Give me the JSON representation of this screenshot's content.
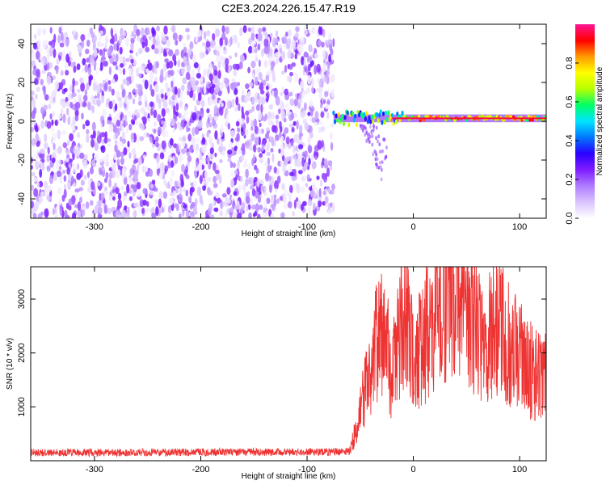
{
  "title": "C2E3.2024.226.15.47.R19",
  "chart_data": [
    {
      "type": "heatmap",
      "xlabel": "Height of straight line (km)",
      "ylabel": "Frequency (Hz)",
      "xlim": [
        -360,
        125
      ],
      "ylim": [
        -50,
        50
      ],
      "xticks": [
        -300,
        -200,
        -100,
        0,
        100
      ],
      "yticks": [
        -40,
        -20,
        0,
        20,
        40
      ],
      "colorbar": {
        "label": "Normalized spectral amplitude",
        "range": [
          0,
          1
        ],
        "ticks": [
          "0.0",
          "0.2",
          "0.4",
          "0.6",
          "0.8"
        ],
        "colors": [
          "#ffffff",
          "#d9c4ff",
          "#b07cff",
          "#7f1cff",
          "#2a00ff",
          "#0077ff",
          "#00e5ff",
          "#00ff66",
          "#b6ff00",
          "#ffff00",
          "#ff9900",
          "#ff0000",
          "#ff1493"
        ]
      },
      "regions": [
        {
          "name": "noise",
          "x_range": [
            -360,
            -75
          ],
          "freq_range": [
            -50,
            48
          ],
          "amplitude": 0.15
        },
        {
          "name": "signal-line",
          "x_range": [
            -75,
            125
          ],
          "frequency": 1.5,
          "peak_amplitude": 0.95
        },
        {
          "name": "scatter-tail",
          "x_range": [
            -50,
            -25
          ],
          "freq_range": [
            -35,
            0
          ],
          "amplitude": 0.15
        }
      ]
    },
    {
      "type": "line",
      "xlabel": "Height of straight line (km)",
      "ylabel": "SNR (10 * v/v)",
      "xlim": [
        -360,
        125
      ],
      "ylim": [
        0,
        3600
      ],
      "xticks": [
        -300,
        -200,
        -100,
        0,
        100
      ],
      "yticks": [
        1000,
        2000,
        3000
      ],
      "series": [
        {
          "name": "SNR",
          "color": "#ee3333",
          "x": [
            -360,
            -300,
            -200,
            -100,
            -60,
            -55,
            -50,
            -45,
            -40,
            -35,
            -30,
            -25,
            -20,
            -15,
            -10,
            -5,
            0,
            5,
            10,
            15,
            20,
            25,
            30,
            35,
            40,
            45,
            50,
            55,
            60,
            65,
            70,
            75,
            80,
            85,
            90,
            95,
            100,
            105,
            110,
            115,
            120,
            125
          ],
          "y": [
            150,
            150,
            160,
            160,
            170,
            500,
            900,
            1300,
            1800,
            2200,
            2300,
            2200,
            1600,
            2100,
            2700,
            2400,
            1800,
            2000,
            2200,
            2500,
            2800,
            3000,
            3100,
            3150,
            3200,
            2950,
            2700,
            2600,
            2500,
            2400,
            2300,
            2450,
            2550,
            2350,
            2150,
            2050,
            1950,
            1850,
            1700,
            1600,
            1550,
            1600
          ]
        }
      ]
    }
  ]
}
